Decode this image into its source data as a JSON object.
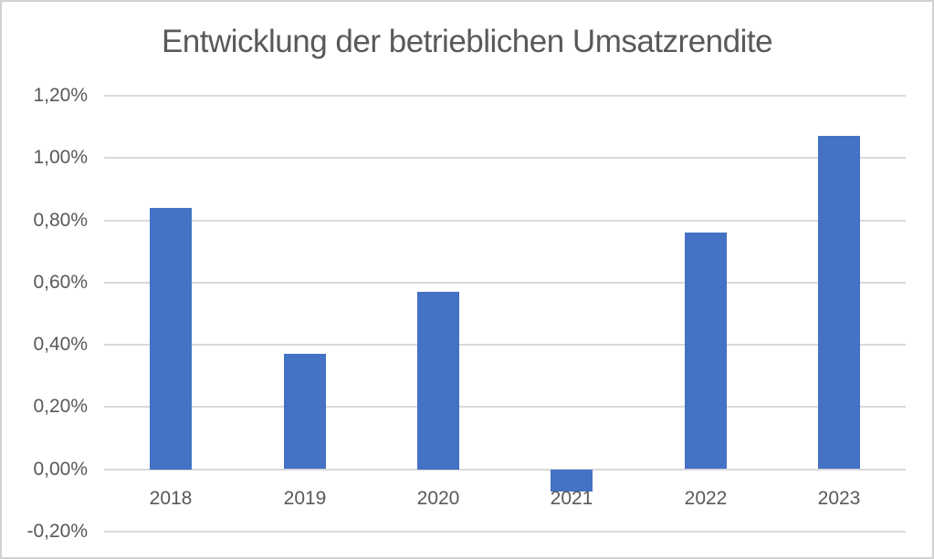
{
  "chart": {
    "title": "Entwicklung der betrieblichen Umsatzrendite"
  },
  "chart_data": {
    "type": "bar",
    "title": "Entwicklung der betrieblichen Umsatzrendite",
    "categories": [
      "2018",
      "2019",
      "2020",
      "2021",
      "2022",
      "2023"
    ],
    "values": [
      0.84,
      0.37,
      0.57,
      -0.07,
      0.76,
      1.07
    ],
    "unit": "%",
    "xlabel": "",
    "ylabel": "",
    "ylim": [
      -0.2,
      1.2
    ],
    "yticks": [
      {
        "value": 1.2,
        "label": "1,20%"
      },
      {
        "value": 1.0,
        "label": "1,00%"
      },
      {
        "value": 0.8,
        "label": "0,80%"
      },
      {
        "value": 0.6,
        "label": "0,60%"
      },
      {
        "value": 0.4,
        "label": "0,40%"
      },
      {
        "value": 0.2,
        "label": "0,20%"
      },
      {
        "value": 0.0,
        "label": "0,00%"
      },
      {
        "value": -0.2,
        "label": "-0,20%"
      }
    ],
    "grid": true,
    "legend_position": "none",
    "bar_color": "#4472C4",
    "gridline_color": "#D9D9D9",
    "text_color": "#595959",
    "background_color": "#FFFFFF",
    "border_color": "#D2D2D2"
  }
}
